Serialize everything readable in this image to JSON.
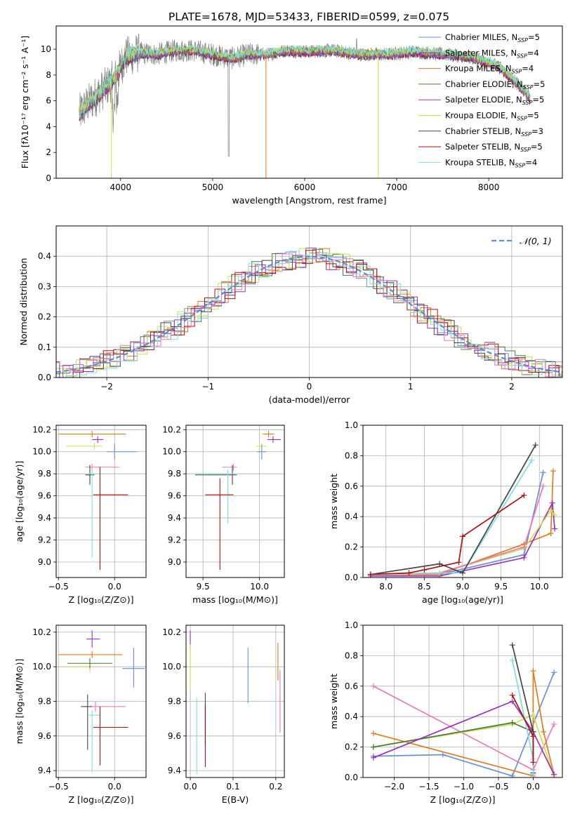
{
  "figure_title": "PLATE=1678, MJD=53433, FIBERID=0599, z=0.075",
  "models": [
    {
      "name": "Chabrier MILES",
      "nssp": "5",
      "color": "#6a8fd8"
    },
    {
      "name": "Salpeter MILES",
      "nssp": "4",
      "color": "#9b30c0"
    },
    {
      "name": "Kroupa MILES",
      "nssp": "4",
      "color": "#e07b20"
    },
    {
      "name": "Chabrier ELODIE",
      "nssp": "5",
      "color": "#4a7a3a"
    },
    {
      "name": "Salpeter ELODIE",
      "nssp": "5",
      "color": "#a040b0"
    },
    {
      "name": "Kroupa ELODIE",
      "nssp": "5",
      "color": "#c8e050"
    },
    {
      "name": "Chabrier STELIB",
      "nssp": "3",
      "color": "#444444"
    },
    {
      "name": "Salpeter STELIB",
      "nssp": "5",
      "color": "#b01010"
    },
    {
      "name": "Kroupa STELIB",
      "nssp": "4",
      "color": "#80dde0"
    }
  ],
  "extra_colors": {
    "pink": "#e87ab8",
    "data_gray": "#808080",
    "normal_curve": "#5b8ad6"
  },
  "chart_data": [
    {
      "id": "spectrum",
      "type": "line",
      "xlabel": "wavelength [Angstrom, rest frame]",
      "ylabel": "Flux [fλ10⁻¹⁷ erg cm⁻² s⁻¹ A⁻¹]",
      "xlim": [
        3300,
        8800
      ],
      "ylim": [
        0,
        11.8
      ],
      "xticks": [
        4000,
        5000,
        6000,
        7000,
        8000
      ],
      "yticks": [
        0,
        2,
        4,
        6,
        8,
        10
      ],
      "legend": "right",
      "x_range_data": [
        3550,
        8450
      ],
      "continuum": [
        [
          3550,
          5.0
        ],
        [
          3650,
          5.8
        ],
        [
          3800,
          6.8
        ],
        [
          3950,
          7.8
        ],
        [
          4050,
          9.4
        ],
        [
          4200,
          9.7
        ],
        [
          4400,
          9.6
        ],
        [
          4600,
          9.9
        ],
        [
          4800,
          9.9
        ],
        [
          5000,
          9.6
        ],
        [
          5200,
          9.3
        ],
        [
          5400,
          9.6
        ],
        [
          5600,
          9.6
        ],
        [
          5800,
          9.9
        ],
        [
          6000,
          9.8
        ],
        [
          6300,
          9.9
        ],
        [
          6600,
          9.6
        ],
        [
          6900,
          9.6
        ],
        [
          7200,
          9.8
        ],
        [
          7500,
          9.6
        ],
        [
          7800,
          9.4
        ],
        [
          8100,
          8.7
        ],
        [
          8300,
          7.4
        ],
        [
          8450,
          6.2
        ]
      ]
    },
    {
      "id": "residuals",
      "type": "histogram",
      "xlabel": "(data-model)/error",
      "ylabel": "Normed distribution",
      "xlim": [
        -2.5,
        2.5
      ],
      "ylim": [
        0,
        0.5
      ],
      "xticks": [
        -2,
        -1,
        0,
        1,
        2
      ],
      "yticks": [
        0.0,
        0.1,
        0.2,
        0.3,
        0.4
      ],
      "grid": true,
      "legend": "top-right",
      "legend_label": "𝒩(0, 1)",
      "bin_width": 0.1
    },
    {
      "id": "age_vs_z",
      "type": "scatter",
      "xlabel": "Z [log₁₀(Z/Z⊙)]",
      "ylabel": "age  [log₁₀(age/yr)]",
      "xlim": [
        -0.52,
        0.28
      ],
      "ylim": [
        8.86,
        10.24
      ],
      "xticks": [
        -0.5,
        0.0
      ],
      "yticks": [
        9.0,
        9.2,
        9.4,
        9.6,
        9.8,
        10.0,
        10.2
      ],
      "grid": true,
      "points": [
        {
          "x": -0.2,
          "y": 10.16,
          "xerr": [
            0.3,
            0.3
          ],
          "yerr": [
            0.03,
            0.03
          ],
          "c": 2
        },
        {
          "x": -0.15,
          "y": 10.11,
          "xerr": [
            0.05,
            0.05
          ],
          "yerr": [
            0.03,
            0.03
          ],
          "c": 1
        },
        {
          "x": -0.18,
          "y": 10.05,
          "xerr": [
            0.25,
            0.07
          ],
          "yerr": [
            0.03,
            0.03
          ],
          "c": 5
        },
        {
          "x": 0.0,
          "y": 10.0,
          "xerr": [
            0.07,
            0.2
          ],
          "yerr": [
            0.07,
            0.07
          ],
          "c": 0
        },
        {
          "x": -0.2,
          "y": 9.86,
          "xerr": [
            0.06,
            0.24
          ],
          "yerr": [
            0.03,
            0.03
          ],
          "c": 10
        },
        {
          "x": -0.22,
          "y": 9.79,
          "xerr": [
            0.04,
            0.04
          ],
          "yerr": [
            0.09,
            0.09
          ],
          "c": 6
        },
        {
          "x": -0.2,
          "y": 9.8,
          "xerr": [
            0.03,
            0.1
          ],
          "yerr": [
            0.76,
            0.04
          ],
          "c": 8
        },
        {
          "x": -0.13,
          "y": 9.61,
          "xerr": [
            0.06,
            0.25
          ],
          "yerr": [
            0.68,
            0.25
          ],
          "c": 7
        }
      ]
    },
    {
      "id": "age_vs_mass",
      "type": "scatter",
      "xlabel": "mass [log₁₀(M/M⊙)]",
      "ylabel": "",
      "xlim": [
        9.35,
        10.22
      ],
      "ylim": [
        8.86,
        10.24
      ],
      "xticks": [
        9.5,
        10.0
      ],
      "yticks": [
        9.0,
        9.2,
        9.4,
        9.6,
        9.8,
        10.0,
        10.2
      ],
      "grid": true,
      "points": [
        {
          "x": 10.08,
          "y": 10.16,
          "xerr": [
            0.05,
            0.05
          ],
          "yerr": [
            0.03,
            0.03
          ],
          "c": 2
        },
        {
          "x": 10.12,
          "y": 10.11,
          "xerr": [
            0.05,
            0.07
          ],
          "yerr": [
            0.03,
            0.03
          ],
          "c": 1
        },
        {
          "x": 10.0,
          "y": 10.05,
          "xerr": [
            0.03,
            0.07
          ],
          "yerr": [
            0.03,
            0.03
          ],
          "c": 5
        },
        {
          "x": 10.02,
          "y": 10.0,
          "xerr": [
            0.04,
            0.04
          ],
          "yerr": [
            0.07,
            0.07
          ],
          "c": 0
        },
        {
          "x": 9.77,
          "y": 9.86,
          "xerr": [
            0.1,
            0.03
          ],
          "yerr": [
            0.03,
            0.03
          ],
          "c": 10
        },
        {
          "x": 9.76,
          "y": 9.79,
          "xerr": [
            0.33,
            0.04
          ],
          "yerr": [
            0.09,
            0.09
          ],
          "c": 6
        },
        {
          "x": 9.72,
          "y": 9.8,
          "xerr": [
            0.26,
            0.07
          ],
          "yerr": [
            0.45,
            0.04
          ],
          "c": 8
        },
        {
          "x": 9.65,
          "y": 9.61,
          "xerr": [
            0.13,
            0.12
          ],
          "yerr": [
            0.68,
            0.15
          ],
          "c": 7
        }
      ]
    },
    {
      "id": "weight_vs_age",
      "type": "line",
      "xlabel": "age  [log₁₀(age/yr)]",
      "ylabel": "mass weight",
      "xlim": [
        7.7,
        10.3
      ],
      "ylim": [
        0,
        1.0
      ],
      "xticks": [
        8.0,
        8.5,
        9.0,
        9.5,
        10.0
      ],
      "yticks": [
        0.0,
        0.2,
        0.4,
        0.6,
        0.8,
        1.0
      ],
      "grid": true,
      "series": [
        {
          "c": 0,
          "x": [
            7.8,
            8.7,
            9.8,
            10.05
          ],
          "y": [
            0.02,
            0.02,
            0.15,
            0.69
          ]
        },
        {
          "c": 2,
          "x": [
            7.8,
            8.7,
            9.8,
            10.15,
            10.18
          ],
          "y": [
            0.02,
            0.02,
            0.22,
            0.29,
            0.7
          ]
        },
        {
          "c": 1,
          "x": [
            7.8,
            8.7,
            9.8,
            10.17,
            10.2
          ],
          "y": [
            0.01,
            0.01,
            0.13,
            0.49,
            0.32
          ]
        },
        {
          "c": 5,
          "x": [
            7.8,
            8.7,
            9.8,
            10.15,
            10.2
          ],
          "y": [
            0.02,
            0.03,
            0.19,
            0.44,
            0.41
          ]
        },
        {
          "c": 10,
          "x": [
            7.8,
            8.7,
            9.8,
            10.05
          ],
          "y": [
            0.02,
            0.03,
            0.2,
            0.6
          ]
        },
        {
          "c": 8,
          "x": [
            7.8,
            8.7,
            9.0,
            9.9
          ],
          "y": [
            0.02,
            0.03,
            0.03,
            0.77
          ]
        },
        {
          "c": 6,
          "x": [
            7.8,
            8.7,
            9.0,
            9.95
          ],
          "y": [
            0.02,
            0.09,
            0.03,
            0.87
          ]
        },
        {
          "c": 7,
          "x": [
            7.8,
            8.3,
            8.5,
            8.95,
            9.0,
            9.8
          ],
          "y": [
            0.02,
            0.03,
            0.05,
            0.1,
            0.27,
            0.54
          ]
        }
      ]
    },
    {
      "id": "mass_vs_z",
      "type": "scatter",
      "xlabel": "Z [log₁₀(Z/Z⊙)]",
      "ylabel": "mass [log₁₀(M/M⊙)]",
      "xlim": [
        -0.52,
        0.28
      ],
      "ylim": [
        9.36,
        10.24
      ],
      "xticks": [
        -0.5,
        0.0
      ],
      "yticks": [
        9.4,
        9.6,
        9.8,
        10.0,
        10.2
      ],
      "grid": true,
      "points": [
        {
          "x": -0.2,
          "y": 10.07,
          "xerr": [
            0.3,
            0.27
          ],
          "yerr": [
            0.02,
            0.02
          ],
          "c": 2
        },
        {
          "x": -0.2,
          "y": 10.16,
          "xerr": [
            0.05,
            0.07
          ],
          "yerr": [
            0.05,
            0.05
          ],
          "c": 1
        },
        {
          "x": -0.22,
          "y": 10.0,
          "xerr": [
            0.22,
            0.03
          ],
          "yerr": [
            0.03,
            0.03
          ],
          "c": 5
        },
        {
          "x": -0.22,
          "y": 10.02,
          "xerr": [
            0.2,
            0.2
          ],
          "yerr": [
            0.03,
            0.03
          ],
          "c": 3
        },
        {
          "x": 0.17,
          "y": 9.99,
          "xerr": [
            0.1,
            0.1
          ],
          "yerr": [
            0.11,
            0.12
          ],
          "c": 0
        },
        {
          "x": -0.17,
          "y": 9.77,
          "xerr": [
            0.05,
            0.27
          ],
          "yerr": [
            0.03,
            0.03
          ],
          "c": 10
        },
        {
          "x": -0.24,
          "y": 9.77,
          "xerr": [
            0.06,
            0.04
          ],
          "yerr": [
            0.25,
            0.07
          ],
          "c": 6
        },
        {
          "x": -0.2,
          "y": 9.72,
          "xerr": [
            0.03,
            0.07
          ],
          "yerr": [
            0.33,
            0.03
          ],
          "c": 8
        },
        {
          "x": -0.13,
          "y": 9.65,
          "xerr": [
            0.06,
            0.25
          ],
          "yerr": [
            0.22,
            0.12
          ],
          "c": 7
        }
      ]
    },
    {
      "id": "mass_vs_ebv",
      "type": "scatter",
      "xlabel": "E(B-V)",
      "ylabel": "",
      "xlim": [
        -0.01,
        0.22
      ],
      "ylim": [
        9.36,
        10.24
      ],
      "xticks": [
        0.0,
        0.1,
        0.2
      ],
      "yticks": [
        9.4,
        9.6,
        9.8,
        10.0,
        10.2
      ],
      "grid": true,
      "points": [
        {
          "x": 0.0,
          "y": 10.16,
          "xerr": [
            0,
            0
          ],
          "yerr": [
            0.05,
            0.05
          ],
          "c": 1
        },
        {
          "x": 0.0,
          "y": 10.0,
          "xerr": [
            0,
            0
          ],
          "yerr": [
            0.13,
            0.13
          ],
          "c": 5
        },
        {
          "x": 0.135,
          "y": 9.95,
          "xerr": [
            0,
            0
          ],
          "yerr": [
            0.16,
            0.16
          ],
          "c": 0
        },
        {
          "x": 0.205,
          "y": 10.03,
          "xerr": [
            0,
            0
          ],
          "yerr": [
            0.11,
            0.11
          ],
          "c": 2
        },
        {
          "x": 0.21,
          "y": 9.8,
          "xerr": [
            0,
            0
          ],
          "yerr": [
            0.18,
            0.18
          ],
          "c": 10
        },
        {
          "x": 0.015,
          "y": 9.6,
          "xerr": [
            0,
            0
          ],
          "yerr": [
            0.22,
            0.22
          ],
          "c": 8
        },
        {
          "x": 0.035,
          "y": 9.7,
          "xerr": [
            0,
            0
          ],
          "yerr": [
            0.15,
            0.15
          ],
          "c": 6
        },
        {
          "x": 0.035,
          "y": 9.6,
          "xerr": [
            0,
            0
          ],
          "yerr": [
            0.18,
            0.18
          ],
          "c": 7
        }
      ]
    },
    {
      "id": "weight_vs_z",
      "type": "line",
      "xlabel": "Z [log₁₀(Z/Z⊙)]",
      "ylabel": "mass weight",
      "xlim": [
        -2.45,
        0.42
      ],
      "ylim": [
        0,
        1.0
      ],
      "xticks": [
        -2.0,
        -1.5,
        -1.0,
        -0.5,
        0.0
      ],
      "yticks": [
        0.0,
        0.2,
        0.4,
        0.6,
        0.8,
        1.0
      ],
      "grid": true,
      "series": [
        {
          "c": 10,
          "x": [
            -2.3,
            0.0,
            0.3
          ],
          "y": [
            0.6,
            0.05,
            0.35
          ]
        },
        {
          "c": 0,
          "x": [
            -2.3,
            -1.3,
            -0.3,
            0.3
          ],
          "y": [
            0.14,
            0.15,
            0.01,
            0.69
          ]
        },
        {
          "c": 2,
          "x": [
            -2.3,
            0.0,
            0.0,
            0.15,
            0.3
          ],
          "y": [
            0.29,
            0.01,
            0.7,
            0.3,
            0.02
          ]
        },
        {
          "c": 5,
          "x": [
            -2.3,
            -0.3,
            0.0,
            0.3
          ],
          "y": [
            0.2,
            0.35,
            0.41,
            0.01
          ]
        },
        {
          "c": 3,
          "x": [
            -2.3,
            -0.3,
            0.0
          ],
          "y": [
            0.2,
            0.36,
            0.3
          ]
        },
        {
          "c": 1,
          "x": [
            -2.3,
            -0.3,
            0.0,
            0.3
          ],
          "y": [
            0.13,
            0.5,
            0.3,
            0.02
          ]
        },
        {
          "c": 6,
          "x": [
            -0.3,
            0.0,
            0.0
          ],
          "y": [
            0.87,
            0.3,
            0.03
          ]
        },
        {
          "c": 8,
          "x": [
            -0.3,
            0.0,
            0.0
          ],
          "y": [
            0.77,
            0.12,
            0.02
          ]
        },
        {
          "c": 7,
          "x": [
            -0.3,
            0.0,
            0.0
          ],
          "y": [
            0.54,
            0.27,
            0.1
          ]
        }
      ]
    }
  ]
}
